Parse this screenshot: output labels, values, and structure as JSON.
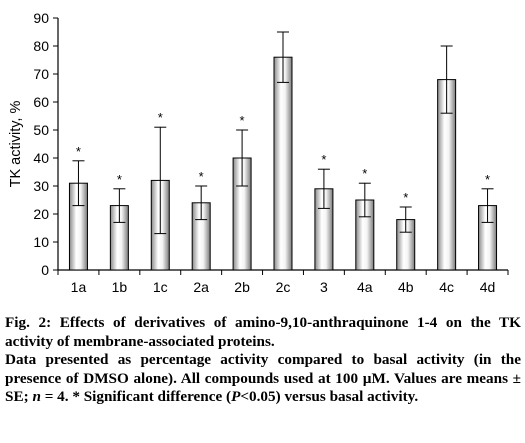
{
  "chart_data": {
    "type": "bar",
    "categories": [
      "1a",
      "1b",
      "1c",
      "2a",
      "2b",
      "2c",
      "3",
      "4a",
      "4b",
      "4c",
      "4d"
    ],
    "values": [
      31,
      23,
      32,
      24,
      40,
      76,
      29,
      25,
      18,
      68,
      23
    ],
    "errors": [
      8,
      6,
      19,
      6,
      10,
      9,
      7,
      6,
      4.5,
      12,
      6
    ],
    "significant": [
      true,
      true,
      true,
      true,
      true,
      false,
      true,
      true,
      true,
      false,
      true
    ],
    "significance_marker": "*",
    "ylabel": "TK activity, %",
    "xlabel": "",
    "title": "",
    "ylim": [
      0,
      90
    ],
    "yticks": [
      0,
      10,
      20,
      30,
      40,
      50,
      60,
      70,
      80,
      90
    ],
    "grid": false,
    "legend": "none"
  },
  "caption": {
    "fig_label": "Fig. 2:",
    "title_text": "Effects of derivatives of amino-9,10-anthraquinone 1-4 on the TK activity of membrane-associated proteins.",
    "desc_part1": "Data presented as percentage activity compared to basal activity (in the presence of DMSO alone). All compounds used at 100 µM. Values are means ± SE; ",
    "desc_n": "n",
    "desc_part2": " = 4. * Significant difference (",
    "desc_p": "P",
    "desc_part3": "<0.05) versus basal activity."
  }
}
